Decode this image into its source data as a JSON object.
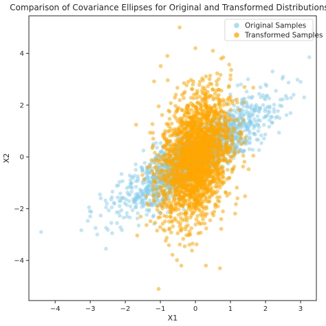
{
  "chart_data": {
    "type": "scatter",
    "title": "Comparison of Covariance Ellipses for Original and Transformed Distributions",
    "xlabel": "X1",
    "ylabel": "X2",
    "xlim": [
      -4.75,
      3.45
    ],
    "ylim": [
      -5.55,
      5.45
    ],
    "x_ticks": [
      -4,
      -3,
      -2,
      -1,
      0,
      1,
      2,
      3
    ],
    "x_tick_labels": [
      "−4",
      "−3",
      "−2",
      "−1",
      "0",
      "1",
      "2",
      "3"
    ],
    "y_ticks": [
      -4,
      -2,
      0,
      2,
      4
    ],
    "y_tick_labels": [
      "−4",
      "−2",
      "0",
      "2",
      "4"
    ],
    "grid": false,
    "legend_position": "top-right",
    "series": [
      {
        "name": "Original Samples",
        "color": "#87ceeb",
        "opacity": 0.5,
        "distribution": {
          "mean": [
            0,
            0
          ],
          "sd": [
            1.0,
            1.0
          ],
          "correlation": 0.85,
          "count": 1800
        },
        "points": [
          [
            -4.4,
            -2.9
          ],
          [
            3.25,
            3.85
          ],
          [
            -3.0,
            -2.3
          ],
          [
            -2.8,
            -3.0
          ],
          [
            -2.55,
            -3.55
          ],
          [
            -2.7,
            -1.6
          ],
          [
            -2.4,
            -2.55
          ],
          [
            -2.2,
            -1.1
          ],
          [
            -1.7,
            -0.5
          ],
          [
            -1.2,
            0.5
          ],
          [
            2.5,
            3.1
          ],
          [
            2.8,
            2.4
          ],
          [
            2.2,
            3.3
          ],
          [
            3.1,
            2.3
          ],
          [
            1.5,
            3.0
          ],
          [
            2.0,
            2.8
          ],
          [
            2.4,
            1.5
          ],
          [
            1.3,
            2.8
          ],
          [
            3.0,
            2.9
          ],
          [
            -2.85,
            -2.75
          ]
        ]
      },
      {
        "name": "Transformed Samples",
        "color": "#ffa500",
        "opacity": 0.55,
        "distribution": {
          "mean": [
            0,
            0
          ],
          "sd": [
            0.5,
            1.25
          ],
          "correlation": 0.3,
          "count": 2200
        },
        "points": [
          [
            -0.45,
            5.0
          ],
          [
            -1.05,
            -5.1
          ],
          [
            0.7,
            -4.3
          ],
          [
            -0.4,
            -4.2
          ],
          [
            0.3,
            -4.2
          ],
          [
            1.4,
            2.7
          ],
          [
            -1.2,
            -1.5
          ],
          [
            1.0,
            3.0
          ],
          [
            -0.75,
            -2.8
          ],
          [
            0.5,
            4.1
          ],
          [
            -0.8,
            3.9
          ],
          [
            0.0,
            4.2
          ],
          [
            1.2,
            -1.6
          ]
        ]
      }
    ]
  }
}
